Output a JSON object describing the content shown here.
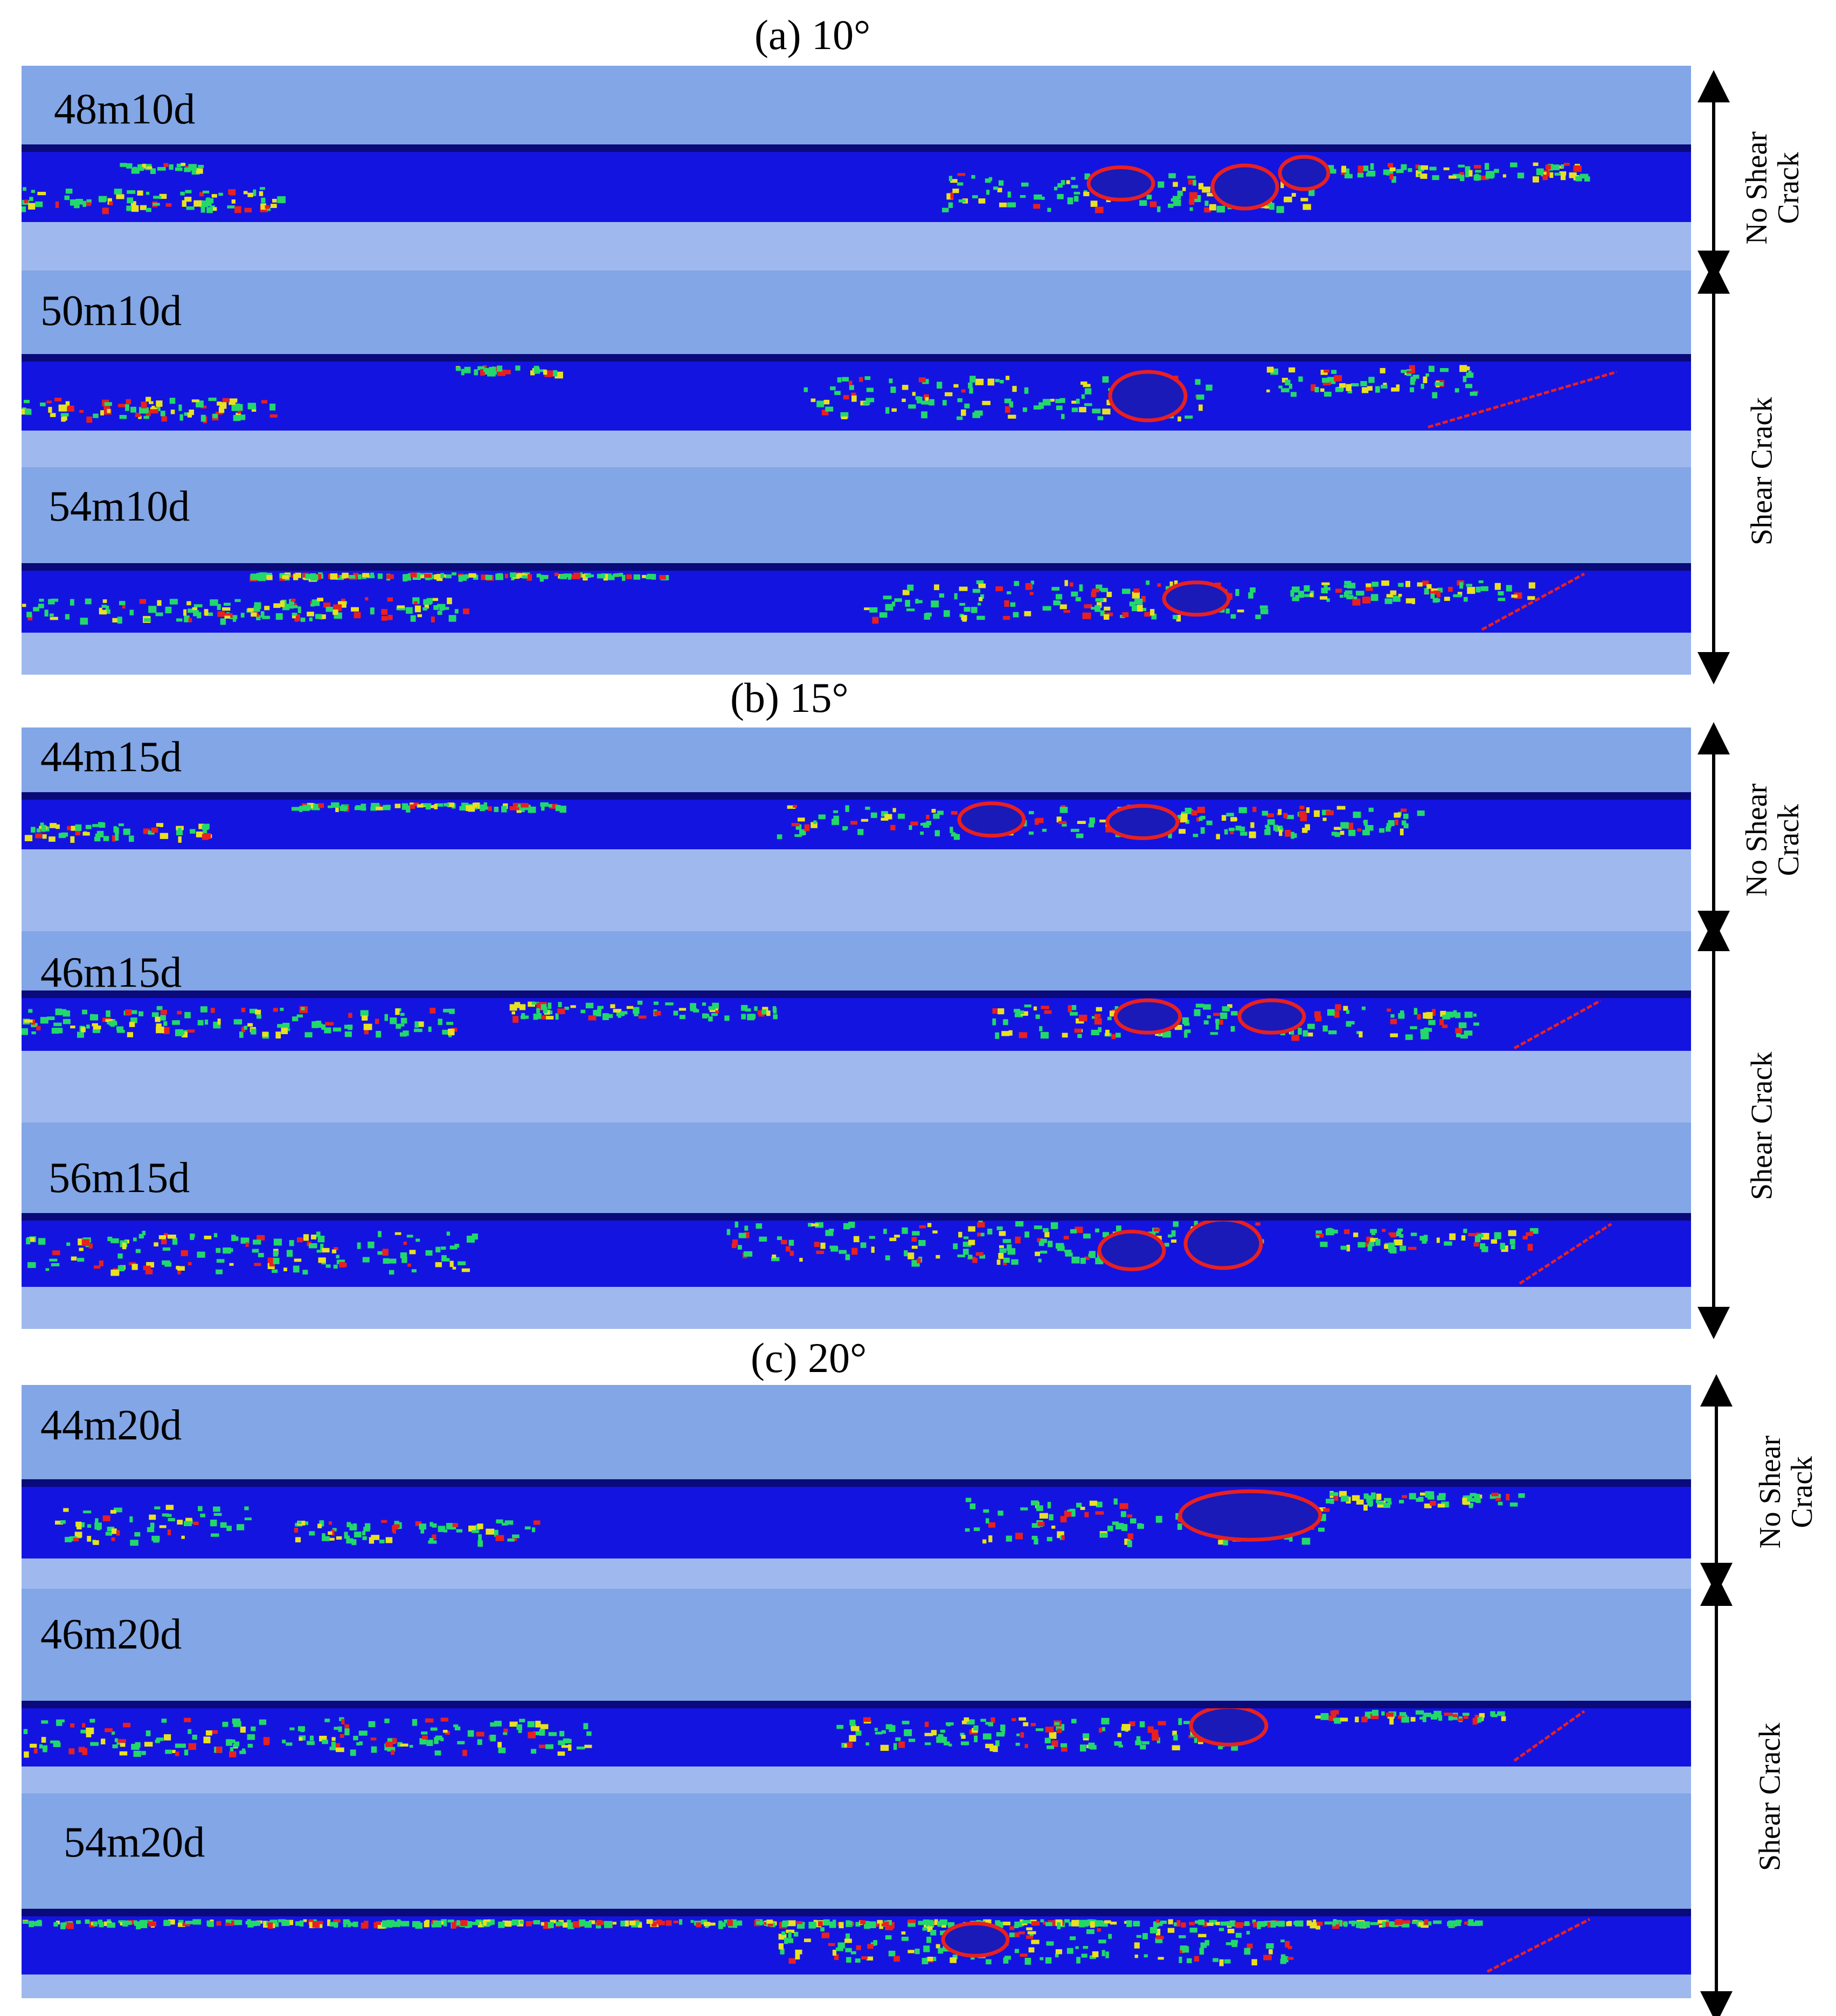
{
  "sections": [
    {
      "title": "(a) 10°",
      "panels": [
        "48m10d",
        "50m10d",
        "54m10d"
      ],
      "groups": [
        {
          "label": "No Shear Crack",
          "lines": [
            "No Shear",
            "Crack"
          ]
        },
        {
          "label": "Shear Crack",
          "lines": [
            "Shear Crack"
          ]
        }
      ]
    },
    {
      "title": "(b) 15°",
      "panels": [
        "44m15d",
        "46m15d",
        "56m15d"
      ],
      "groups": [
        {
          "label": "No Shear Crack",
          "lines": [
            "No Shear",
            "Crack"
          ]
        },
        {
          "label": "Shear Crack",
          "lines": [
            "Shear Crack"
          ]
        }
      ]
    },
    {
      "title": "(c) 20°",
      "panels": [
        "44m20d",
        "46m20d",
        "54m20d"
      ],
      "groups": [
        {
          "label": "No Shear Crack",
          "lines": [
            "No Shear",
            "Crack"
          ]
        },
        {
          "label": "Shear Crack",
          "lines": [
            "Shear Crack"
          ]
        }
      ]
    }
  ],
  "colors": {
    "sky": "#82a6e6",
    "ground": "#9fb9ee",
    "slab": "#1414e0",
    "damage_low": "#22d86a",
    "damage_mid": "#e8e020",
    "damage_high": "#e82020"
  }
}
